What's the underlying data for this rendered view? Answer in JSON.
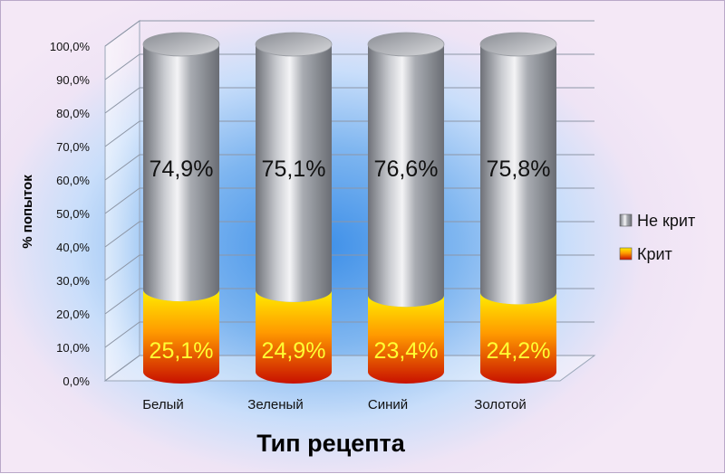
{
  "chart_data": {
    "type": "bar",
    "stacked": true,
    "style": "3d-cylinder",
    "categories": [
      "Белый",
      "Зеленый",
      "Синий",
      "Золотой"
    ],
    "series": [
      {
        "name": "Крит",
        "values": [
          25.1,
          24.9,
          23.4,
          24.2
        ],
        "labels": [
          "25,1%",
          "24,9%",
          "23,4%",
          "24,2%"
        ],
        "color": "#e8a000"
      },
      {
        "name": "Не крит",
        "values": [
          74.9,
          75.1,
          76.6,
          75.8
        ],
        "labels": [
          "74,9%",
          "75,1%",
          "76,6%",
          "75,8%"
        ],
        "color": "#a0a4ac"
      }
    ],
    "xlabel": "Тип рецепта",
    "ylabel": "% попыток",
    "ylim": [
      0,
      100
    ],
    "yticks": [
      "0,0%",
      "10,0%",
      "20,0%",
      "30,0%",
      "40,0%",
      "50,0%",
      "60,0%",
      "70,0%",
      "80,0%",
      "90,0%",
      "100,0%"
    ],
    "grid": true,
    "legend": "right"
  }
}
